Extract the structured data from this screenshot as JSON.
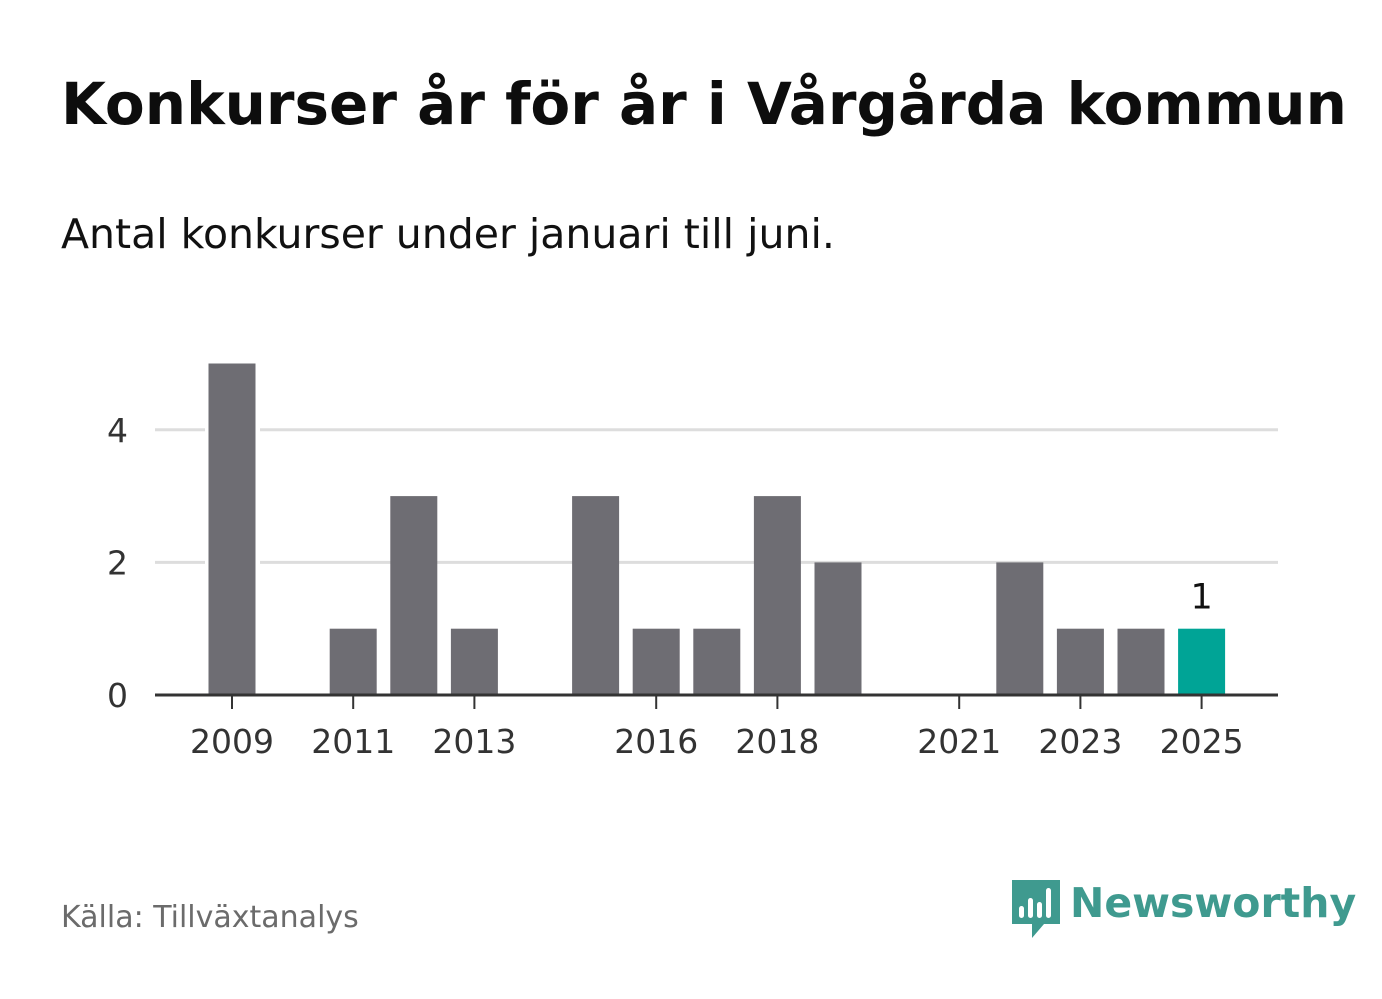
{
  "header": {
    "title": "Konkurser år för år i Vårgårda kommun",
    "subtitle": "Antal konkurser under januari till juni."
  },
  "footer": {
    "source": "Källa: Tillväxtanalys",
    "brand": "Newsworthy",
    "brand_icon": "bar-chart-speech-bubble-icon",
    "brand_color": "#3f9a8f"
  },
  "colors": {
    "bar": "#6e6d73",
    "highlight": "#00a496",
    "grid": "#dddddd",
    "axis": "#333333",
    "tick_text": "#333333"
  },
  "chart_data": {
    "type": "bar",
    "categories": [
      "2009",
      "2010",
      "2011",
      "2012",
      "2013",
      "2014",
      "2015",
      "2016",
      "2017",
      "2018",
      "2019",
      "2020",
      "2021",
      "2022",
      "2023",
      "2024",
      "2025"
    ],
    "values": [
      5,
      0,
      1,
      3,
      1,
      0,
      3,
      1,
      1,
      3,
      2,
      0,
      0,
      2,
      1,
      1,
      1
    ],
    "highlight_category": "2025",
    "highlight_label": "1",
    "x_tick_labels": [
      "2009",
      "2011",
      "2013",
      "2016",
      "2018",
      "2021",
      "2023",
      "2025"
    ],
    "y_ticks": [
      0,
      2,
      4
    ],
    "ylim": [
      0,
      5
    ],
    "grid": true,
    "legend": false,
    "title": "Konkurser år för år i Vårgårda kommun",
    "subtitle": "Antal konkurser under januari till juni.",
    "xlabel": "",
    "ylabel": ""
  }
}
